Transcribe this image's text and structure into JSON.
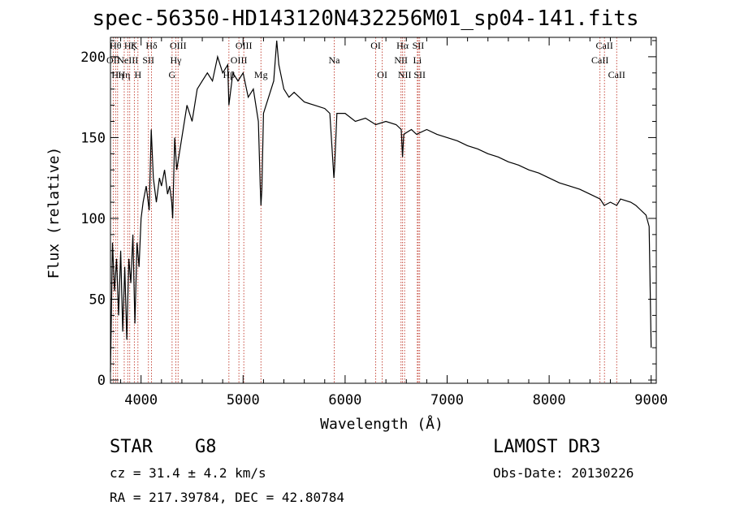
{
  "title": "spec-56350-HD143120N432256M01_sp04-141.fits",
  "info": {
    "object_type": "STAR",
    "object_class": "G8",
    "survey": "LAMOST DR3",
    "cz_line": "cz = 31.4 ± 4.2 km/s",
    "obs_date_line": "Obs-Date: 20130226",
    "radec_line": "RA = 217.39784, DEC =  42.80784"
  },
  "chart_data": {
    "type": "line",
    "title": "spec-56350-HD143120N432256M01_sp04-141.fits",
    "xlabel": "Wavelength (Å)",
    "ylabel": "Flux (relative)",
    "xlim": [
      3700,
      9050
    ],
    "ylim": [
      -2,
      212
    ],
    "xticks": [
      4000,
      5000,
      6000,
      7000,
      8000,
      9000
    ],
    "yticks": [
      0,
      50,
      100,
      150,
      200
    ],
    "grid": false,
    "series": [
      {
        "name": "flux",
        "points": [
          [
            3700,
            5
          ],
          [
            3720,
            85
          ],
          [
            3740,
            55
          ],
          [
            3760,
            75
          ],
          [
            3780,
            40
          ],
          [
            3800,
            80
          ],
          [
            3820,
            30
          ],
          [
            3840,
            70
          ],
          [
            3860,
            25
          ],
          [
            3880,
            75
          ],
          [
            3900,
            60
          ],
          [
            3920,
            90
          ],
          [
            3940,
            35
          ],
          [
            3960,
            85
          ],
          [
            3980,
            70
          ],
          [
            4000,
            100
          ],
          [
            4020,
            110
          ],
          [
            4050,
            120
          ],
          [
            4080,
            105
          ],
          [
            4100,
            155
          ],
          [
            4120,
            125
          ],
          [
            4150,
            110
          ],
          [
            4180,
            125
          ],
          [
            4200,
            120
          ],
          [
            4230,
            130
          ],
          [
            4260,
            115
          ],
          [
            4280,
            120
          ],
          [
            4300,
            110
          ],
          [
            4310,
            100
          ],
          [
            4330,
            150
          ],
          [
            4350,
            130
          ],
          [
            4400,
            150
          ],
          [
            4450,
            170
          ],
          [
            4500,
            160
          ],
          [
            4550,
            180
          ],
          [
            4600,
            185
          ],
          [
            4650,
            190
          ],
          [
            4700,
            185
          ],
          [
            4750,
            200
          ],
          [
            4800,
            190
          ],
          [
            4850,
            195
          ],
          [
            4861,
            170
          ],
          [
            4900,
            190
          ],
          [
            4950,
            185
          ],
          [
            5000,
            190
          ],
          [
            5050,
            175
          ],
          [
            5100,
            180
          ],
          [
            5150,
            160
          ],
          [
            5168,
            120
          ],
          [
            5175,
            108
          ],
          [
            5184,
            118
          ],
          [
            5200,
            165
          ],
          [
            5250,
            175
          ],
          [
            5300,
            185
          ],
          [
            5330,
            210
          ],
          [
            5350,
            195
          ],
          [
            5400,
            180
          ],
          [
            5450,
            175
          ],
          [
            5500,
            178
          ],
          [
            5600,
            172
          ],
          [
            5700,
            170
          ],
          [
            5800,
            168
          ],
          [
            5850,
            165
          ],
          [
            5890,
            125
          ],
          [
            5896,
            130
          ],
          [
            5920,
            165
          ],
          [
            6000,
            165
          ],
          [
            6100,
            160
          ],
          [
            6200,
            162
          ],
          [
            6300,
            158
          ],
          [
            6400,
            160
          ],
          [
            6500,
            158
          ],
          [
            6550,
            155
          ],
          [
            6563,
            138
          ],
          [
            6575,
            152
          ],
          [
            6650,
            155
          ],
          [
            6700,
            152
          ],
          [
            6800,
            155
          ],
          [
            6900,
            152
          ],
          [
            7000,
            150
          ],
          [
            7100,
            148
          ],
          [
            7200,
            145
          ],
          [
            7300,
            143
          ],
          [
            7400,
            140
          ],
          [
            7500,
            138
          ],
          [
            7600,
            135
          ],
          [
            7700,
            133
          ],
          [
            7800,
            130
          ],
          [
            7900,
            128
          ],
          [
            8000,
            125
          ],
          [
            8100,
            122
          ],
          [
            8200,
            120
          ],
          [
            8300,
            118
          ],
          [
            8400,
            115
          ],
          [
            8500,
            112
          ],
          [
            8540,
            108
          ],
          [
            8600,
            110
          ],
          [
            8662,
            108
          ],
          [
            8700,
            112
          ],
          [
            8800,
            110
          ],
          [
            8850,
            108
          ],
          [
            8900,
            105
          ],
          [
            8950,
            102
          ],
          [
            8980,
            95
          ],
          [
            9000,
            20
          ]
        ]
      }
    ],
    "lines": [
      {
        "wl": 3727,
        "label": "OII",
        "row": 1
      },
      {
        "wl": 3750,
        "label": "Hθ",
        "row": 0
      },
      {
        "wl": 3770,
        "label": "Hη",
        "row": 2
      },
      {
        "wl": 3835,
        "label": "Hη",
        "row": 2
      },
      {
        "wl": 3869,
        "label": "NeIII",
        "row": 1
      },
      {
        "wl": 3889,
        "label": "Hζ",
        "row": 0
      },
      {
        "wl": 3934,
        "label": "K",
        "row": 0
      },
      {
        "wl": 3969,
        "label": "H",
        "row": 2
      },
      {
        "wl": 4072,
        "label": "SII",
        "row": 1
      },
      {
        "wl": 4102,
        "label": "Hδ",
        "row": 0
      },
      {
        "wl": 4304,
        "label": "G",
        "row": 2
      },
      {
        "wl": 4341,
        "label": "Hγ",
        "row": 1
      },
      {
        "wl": 4363,
        "label": "OIII",
        "row": 0
      },
      {
        "wl": 4861,
        "label": "Hβ",
        "row": 2
      },
      {
        "wl": 4959,
        "label": "OIII",
        "row": 1
      },
      {
        "wl": 5007,
        "label": "OIII",
        "row": 0
      },
      {
        "wl": 5175,
        "label": "Mg",
        "row": 2
      },
      {
        "wl": 5893,
        "label": "Na",
        "row": 1
      },
      {
        "wl": 6300,
        "label": "OI",
        "row": 0
      },
      {
        "wl": 6364,
        "label": "OI",
        "row": 2
      },
      {
        "wl": 6548,
        "label": "NII",
        "row": 1
      },
      {
        "wl": 6563,
        "label": "Hα",
        "row": 0
      },
      {
        "wl": 6583,
        "label": "NII",
        "row": 2
      },
      {
        "wl": 6708,
        "label": "Li",
        "row": 1
      },
      {
        "wl": 6717,
        "label": "SII",
        "row": 0
      },
      {
        "wl": 6731,
        "label": "SII",
        "row": 2
      },
      {
        "wl": 8498,
        "label": "CaII",
        "row": 1
      },
      {
        "wl": 8542,
        "label": "CaII",
        "row": 0
      },
      {
        "wl": 8662,
        "label": "CaII",
        "row": 2
      }
    ]
  }
}
